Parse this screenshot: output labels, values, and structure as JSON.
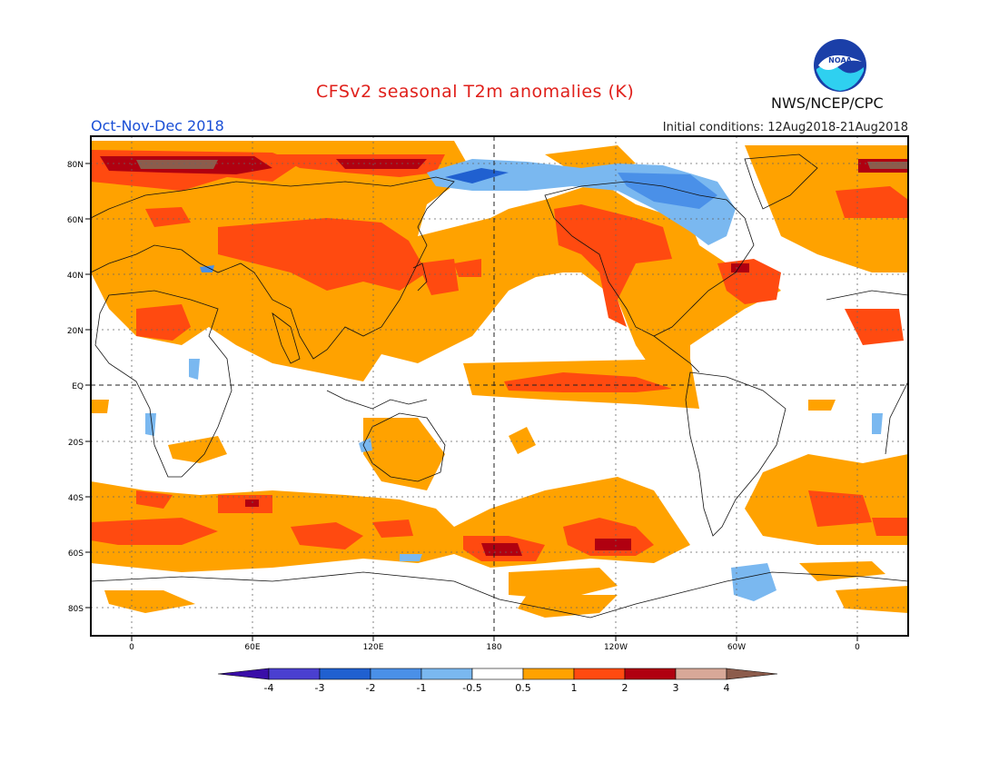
{
  "header": {
    "title": "CFSv2 seasonal T2m anomalies (K)",
    "season": "Oct-Nov-Dec 2018",
    "initial_conditions": "Initial conditions: 12Aug2018-21Aug2018",
    "agency": "NWS/NCEP/CPC",
    "logo_text": "NOAA"
  },
  "axes": {
    "x_ticks": [
      "0",
      "60E",
      "120E",
      "180",
      "120W",
      "60W",
      "0"
    ],
    "y_ticks": [
      "80N",
      "60N",
      "40N",
      "20N",
      "EQ",
      "20S",
      "40S",
      "60S",
      "80S"
    ]
  },
  "colorbar": {
    "labels": [
      "-4",
      "-3",
      "-2",
      "-1",
      "-0.5",
      "0.5",
      "1",
      "2",
      "3",
      "4"
    ],
    "colors": [
      "#3a0ea8",
      "#4a3fd0",
      "#2060d0",
      "#4a90e8",
      "#7ab8f0",
      "#ffffff",
      "#ffa200",
      "#ff4a10",
      "#b00010",
      "#d8a898",
      "#8c5c4c"
    ]
  }
}
